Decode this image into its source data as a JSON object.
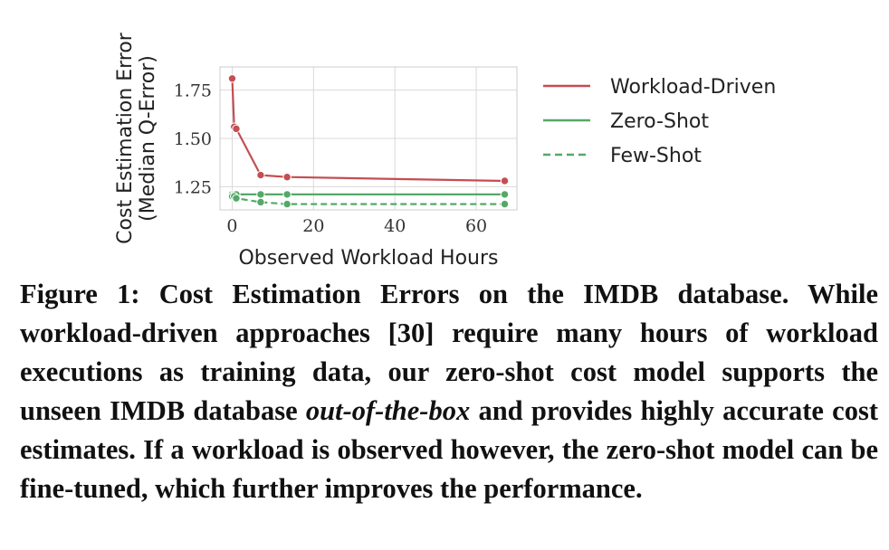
{
  "chart_data": {
    "type": "line",
    "xlabel": "Observed Workload Hours",
    "ylabel_lines": [
      "Cost Estimation Error",
      "(Median Q-Error)"
    ],
    "xlim": [
      -3,
      70
    ],
    "ylim": [
      1.13,
      1.87
    ],
    "x_ticks": [
      0,
      20,
      40,
      60
    ],
    "y_ticks": [
      1.25,
      1.5,
      1.75
    ],
    "x_tick_labels": [
      "0",
      "20",
      "40",
      "60"
    ],
    "y_tick_labels": [
      "1.25",
      "1.50",
      "1.75"
    ],
    "grid": true,
    "legend_position": "right",
    "series": [
      {
        "name": "Workload-Driven",
        "color": "#c44e52",
        "style": "solid",
        "x": [
          0,
          0.5,
          1,
          7,
          13.5,
          67
        ],
        "y": [
          1.81,
          1.56,
          1.55,
          1.31,
          1.3,
          1.28
        ]
      },
      {
        "name": "Zero-Shot",
        "color": "#55a868",
        "style": "solid",
        "x": [
          0,
          0.5,
          1,
          7,
          13.5,
          67
        ],
        "y": [
          1.21,
          1.21,
          1.21,
          1.21,
          1.21,
          1.21
        ]
      },
      {
        "name": "Few-Shot",
        "color": "#55a868",
        "style": "dashed",
        "x": [
          0,
          0.5,
          1,
          7,
          13.5,
          67
        ],
        "y": [
          1.2,
          1.2,
          1.19,
          1.17,
          1.16,
          1.16
        ]
      }
    ]
  },
  "caption": {
    "figure_label": "Figure 1: Cost Estimation Errors on the IMDB database. While workload-driven approaches [30] require many hours of workload executions as training data, our zero-shot cost model supports the unseen IMDB database ",
    "italic_phrase": "out-of-the-box",
    "rest": " and provides highly accurate cost estimates. If a workload is observed however, the zero-shot model can be fine-tuned, which further improves the performance."
  }
}
